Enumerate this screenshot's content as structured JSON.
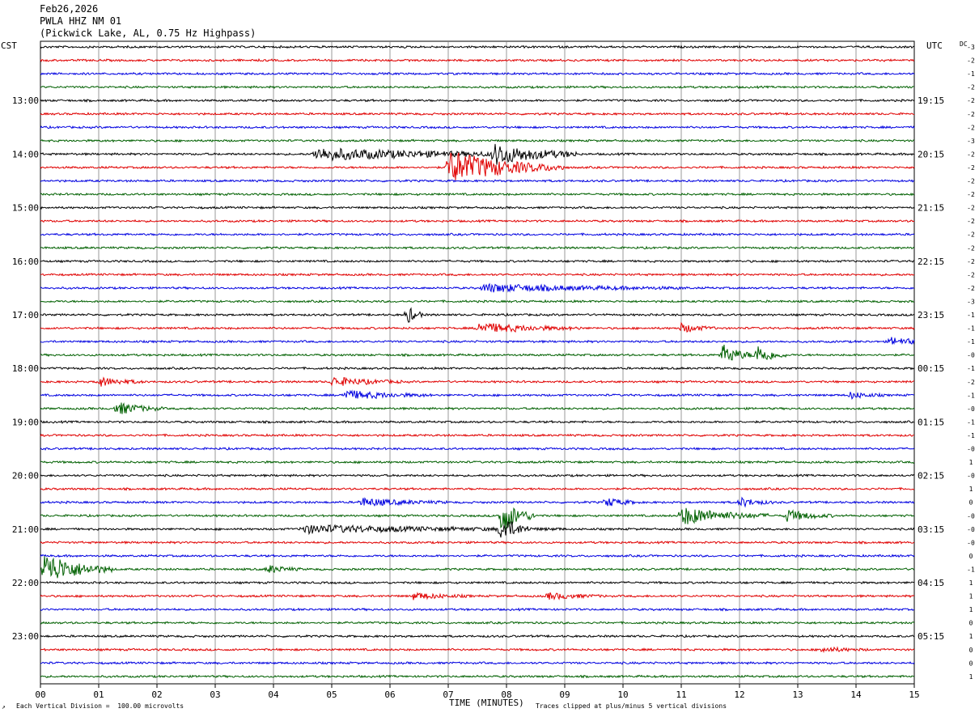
{
  "header": {
    "date": "Feb26,2026",
    "station": "PWLA HHZ NM 01",
    "location": "(Pickwick Lake, AL, 0.75 Hz Highpass)"
  },
  "left_axis_label": "CST",
  "right_axis_label": "UTC",
  "dc_label": "DC",
  "footer": {
    "scale_note": "Each Vertical Division =  100.00 microvolts",
    "clip_note": "Traces clipped at plus/minus 5 vertical divisions",
    "corner_mark": "↗"
  },
  "colors": {
    "line1": "#000000",
    "line2": "#e00000",
    "line3": "#0000e0",
    "line4": "#006000",
    "grid": "#808080"
  },
  "chart_data": {
    "type": "line",
    "title": "PWLA HHZ NM 01",
    "xlabel": "TIME (MINUTES)",
    "ylabel": "CST",
    "x_ticks": [
      "00",
      "01",
      "02",
      "03",
      "04",
      "05",
      "06",
      "07",
      "08",
      "09",
      "10",
      "11",
      "12",
      "13",
      "14",
      "15"
    ],
    "xlim": [
      0,
      15
    ],
    "rows_per_hour": 4,
    "row_count": 48,
    "cst_hour_labels": [
      {
        "row": 4,
        "label": "13:00"
      },
      {
        "row": 8,
        "label": "14:00"
      },
      {
        "row": 12,
        "label": "15:00"
      },
      {
        "row": 16,
        "label": "16:00"
      },
      {
        "row": 20,
        "label": "17:00"
      },
      {
        "row": 24,
        "label": "18:00"
      },
      {
        "row": 28,
        "label": "19:00"
      },
      {
        "row": 32,
        "label": "20:00"
      },
      {
        "row": 36,
        "label": "21:00"
      },
      {
        "row": 40,
        "label": "22:00"
      },
      {
        "row": 44,
        "label": "23:00"
      }
    ],
    "utc_hour_labels": [
      {
        "row": 4,
        "label": "19:15"
      },
      {
        "row": 8,
        "label": "20:15"
      },
      {
        "row": 12,
        "label": "21:15"
      },
      {
        "row": 16,
        "label": "22:15"
      },
      {
        "row": 20,
        "label": "23:15"
      },
      {
        "row": 24,
        "label": "00:15"
      },
      {
        "row": 28,
        "label": "01:15"
      },
      {
        "row": 32,
        "label": "02:15"
      },
      {
        "row": 36,
        "label": "03:15"
      },
      {
        "row": 40,
        "label": "04:15"
      },
      {
        "row": 44,
        "label": "05:15"
      }
    ],
    "dc_offsets": [
      "-3",
      "-2",
      "-1",
      "-2",
      "-2",
      "-2",
      "-2",
      "-3",
      "-2",
      "-2",
      "-2",
      "-2",
      "-2",
      "-2",
      "-2",
      "-2",
      "-2",
      "-2",
      "-2",
      "-3",
      "-1",
      "-1",
      "-1",
      "-0",
      "-1",
      "-2",
      "-1",
      "-0",
      "-1",
      "-1",
      "-0",
      "1",
      "-0",
      "1",
      "0",
      "-0",
      "-0",
      "-0",
      "0",
      "-1",
      "1",
      "1",
      "1",
      "0",
      "1",
      "0",
      "0",
      "1"
    ],
    "events": [
      {
        "row": 8,
        "minute": 4.7,
        "amplitude": 0.9,
        "duration": 4.5
      },
      {
        "row": 8,
        "minute": 7.8,
        "amplitude": 1.4,
        "duration": 1.4
      },
      {
        "row": 9,
        "minute": 7.0,
        "amplitude": 2.6,
        "duration": 2.0
      },
      {
        "row": 18,
        "minute": 7.6,
        "amplitude": 0.6,
        "duration": 3.5
      },
      {
        "row": 20,
        "minute": 6.3,
        "amplitude": 1.3,
        "duration": 0.3
      },
      {
        "row": 21,
        "minute": 7.5,
        "amplitude": 0.8,
        "duration": 1.8
      },
      {
        "row": 21,
        "minute": 11.0,
        "amplitude": 0.7,
        "duration": 0.6
      },
      {
        "row": 22,
        "minute": 14.6,
        "amplitude": 0.6,
        "duration": 0.8
      },
      {
        "row": 23,
        "minute": 11.7,
        "amplitude": 1.6,
        "duration": 0.6
      },
      {
        "row": 23,
        "minute": 12.3,
        "amplitude": 1.6,
        "duration": 0.5
      },
      {
        "row": 25,
        "minute": 1.0,
        "amplitude": 0.7,
        "duration": 0.8
      },
      {
        "row": 25,
        "minute": 5.0,
        "amplitude": 0.7,
        "duration": 1.2
      },
      {
        "row": 26,
        "minute": 5.2,
        "amplitude": 0.7,
        "duration": 1.5
      },
      {
        "row": 26,
        "minute": 13.9,
        "amplitude": 0.5,
        "duration": 0.6
      },
      {
        "row": 27,
        "minute": 1.3,
        "amplitude": 1.0,
        "duration": 0.8
      },
      {
        "row": 34,
        "minute": 5.5,
        "amplitude": 0.6,
        "duration": 1.5
      },
      {
        "row": 34,
        "minute": 9.7,
        "amplitude": 0.7,
        "duration": 0.6
      },
      {
        "row": 34,
        "minute": 12.0,
        "amplitude": 0.7,
        "duration": 0.6
      },
      {
        "row": 35,
        "minute": 7.9,
        "amplitude": 2.8,
        "duration": 0.6
      },
      {
        "row": 35,
        "minute": 11.0,
        "amplitude": 1.4,
        "duration": 1.5
      },
      {
        "row": 35,
        "minute": 12.8,
        "amplitude": 0.9,
        "duration": 0.8
      },
      {
        "row": 36,
        "minute": 4.5,
        "amplitude": 0.6,
        "duration": 4.5
      },
      {
        "row": 36,
        "minute": 7.9,
        "amplitude": 2.0,
        "duration": 0.5
      },
      {
        "row": 39,
        "minute": 0.05,
        "amplitude": 2.5,
        "duration": 1.2
      },
      {
        "row": 39,
        "minute": 3.9,
        "amplitude": 0.6,
        "duration": 0.6
      },
      {
        "row": 41,
        "minute": 6.4,
        "amplitude": 0.5,
        "duration": 1.0
      },
      {
        "row": 41,
        "minute": 8.7,
        "amplitude": 0.5,
        "duration": 1.0
      },
      {
        "row": 45,
        "minute": 13.4,
        "amplitude": 0.4,
        "duration": 0.8
      }
    ],
    "noise_amplitude": 0.18
  }
}
